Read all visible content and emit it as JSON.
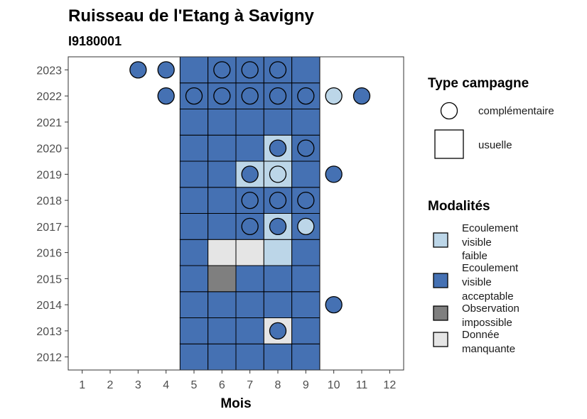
{
  "chart_data": {
    "type": "heatmap",
    "title": "Ruisseau de l'Etang à Savigny",
    "subtitle": "I9180001",
    "xlabel": "Mois",
    "ylabel": "",
    "x_ticks": [
      1,
      2,
      3,
      4,
      5,
      6,
      7,
      8,
      9,
      10,
      11,
      12
    ],
    "y_ticks": [
      2012,
      2013,
      2014,
      2015,
      2016,
      2017,
      2018,
      2019,
      2020,
      2021,
      2022,
      2023
    ],
    "xlim": [
      0.5,
      12.5
    ],
    "ylim": [
      2011.5,
      2023.5
    ],
    "grid": false,
    "modalites": [
      {
        "key": "faible",
        "label": "Ecoulement visible faible",
        "label_lines": [
          "Ecoulement",
          "visible",
          "faible"
        ],
        "color": "#bcd6e8"
      },
      {
        "key": "acceptable",
        "label": "Ecoulement visible acceptable",
        "label_lines": [
          "Ecoulement",
          "visible",
          "acceptable"
        ],
        "color": "#4571b3"
      },
      {
        "key": "impossible",
        "label": "Observation impossible",
        "label_lines": [
          "Observation",
          "impossible"
        ],
        "color": "#7f7f7f"
      },
      {
        "key": "manquante",
        "label": "Donnée manquante",
        "label_lines": [
          "Donnée",
          "manquante"
        ],
        "color": "#e5e5e5"
      }
    ],
    "type_campagne": [
      {
        "key": "complementaire",
        "label": "complémentaire",
        "shape": "circle"
      },
      {
        "key": "usuelle",
        "label": "usuelle",
        "shape": "square"
      }
    ],
    "usuelle": [
      {
        "year": 2012,
        "month": 5,
        "m": "acceptable"
      },
      {
        "year": 2012,
        "month": 6,
        "m": "acceptable"
      },
      {
        "year": 2012,
        "month": 7,
        "m": "acceptable"
      },
      {
        "year": 2012,
        "month": 8,
        "m": "acceptable"
      },
      {
        "year": 2012,
        "month": 9,
        "m": "acceptable"
      },
      {
        "year": 2013,
        "month": 5,
        "m": "acceptable"
      },
      {
        "year": 2013,
        "month": 6,
        "m": "acceptable"
      },
      {
        "year": 2013,
        "month": 7,
        "m": "acceptable"
      },
      {
        "year": 2013,
        "month": 8,
        "m": "manquante"
      },
      {
        "year": 2013,
        "month": 9,
        "m": "acceptable"
      },
      {
        "year": 2014,
        "month": 5,
        "m": "acceptable"
      },
      {
        "year": 2014,
        "month": 6,
        "m": "acceptable"
      },
      {
        "year": 2014,
        "month": 7,
        "m": "acceptable"
      },
      {
        "year": 2014,
        "month": 8,
        "m": "acceptable"
      },
      {
        "year": 2014,
        "month": 9,
        "m": "acceptable"
      },
      {
        "year": 2015,
        "month": 5,
        "m": "acceptable"
      },
      {
        "year": 2015,
        "month": 6,
        "m": "impossible"
      },
      {
        "year": 2015,
        "month": 7,
        "m": "acceptable"
      },
      {
        "year": 2015,
        "month": 8,
        "m": "acceptable"
      },
      {
        "year": 2015,
        "month": 9,
        "m": "acceptable"
      },
      {
        "year": 2016,
        "month": 5,
        "m": "acceptable"
      },
      {
        "year": 2016,
        "month": 6,
        "m": "manquante"
      },
      {
        "year": 2016,
        "month": 7,
        "m": "manquante"
      },
      {
        "year": 2016,
        "month": 8,
        "m": "faible"
      },
      {
        "year": 2016,
        "month": 9,
        "m": "acceptable"
      },
      {
        "year": 2017,
        "month": 5,
        "m": "acceptable"
      },
      {
        "year": 2017,
        "month": 6,
        "m": "acceptable"
      },
      {
        "year": 2017,
        "month": 7,
        "m": "acceptable"
      },
      {
        "year": 2017,
        "month": 8,
        "m": "faible"
      },
      {
        "year": 2017,
        "month": 9,
        "m": "acceptable"
      },
      {
        "year": 2018,
        "month": 5,
        "m": "acceptable"
      },
      {
        "year": 2018,
        "month": 6,
        "m": "acceptable"
      },
      {
        "year": 2018,
        "month": 7,
        "m": "acceptable"
      },
      {
        "year": 2018,
        "month": 8,
        "m": "acceptable"
      },
      {
        "year": 2018,
        "month": 9,
        "m": "acceptable"
      },
      {
        "year": 2019,
        "month": 5,
        "m": "acceptable"
      },
      {
        "year": 2019,
        "month": 6,
        "m": "acceptable"
      },
      {
        "year": 2019,
        "month": 7,
        "m": "faible"
      },
      {
        "year": 2019,
        "month": 8,
        "m": "faible"
      },
      {
        "year": 2019,
        "month": 9,
        "m": "acceptable"
      },
      {
        "year": 2020,
        "month": 5,
        "m": "acceptable"
      },
      {
        "year": 2020,
        "month": 6,
        "m": "acceptable"
      },
      {
        "year": 2020,
        "month": 7,
        "m": "acceptable"
      },
      {
        "year": 2020,
        "month": 8,
        "m": "faible"
      },
      {
        "year": 2020,
        "month": 9,
        "m": "acceptable"
      },
      {
        "year": 2021,
        "month": 5,
        "m": "acceptable"
      },
      {
        "year": 2021,
        "month": 6,
        "m": "acceptable"
      },
      {
        "year": 2021,
        "month": 7,
        "m": "acceptable"
      },
      {
        "year": 2021,
        "month": 8,
        "m": "acceptable"
      },
      {
        "year": 2021,
        "month": 9,
        "m": "acceptable"
      },
      {
        "year": 2022,
        "month": 5,
        "m": "acceptable"
      },
      {
        "year": 2022,
        "month": 6,
        "m": "acceptable"
      },
      {
        "year": 2022,
        "month": 7,
        "m": "acceptable"
      },
      {
        "year": 2022,
        "month": 8,
        "m": "acceptable"
      },
      {
        "year": 2022,
        "month": 9,
        "m": "acceptable"
      },
      {
        "year": 2023,
        "month": 5,
        "m": "acceptable"
      },
      {
        "year": 2023,
        "month": 6,
        "m": "acceptable"
      },
      {
        "year": 2023,
        "month": 7,
        "m": "acceptable"
      },
      {
        "year": 2023,
        "month": 8,
        "m": "acceptable"
      },
      {
        "year": 2023,
        "month": 9,
        "m": "acceptable"
      }
    ],
    "complementaire": [
      {
        "year": 2023,
        "month": 3,
        "m": "acceptable"
      },
      {
        "year": 2023,
        "month": 4,
        "m": "acceptable"
      },
      {
        "year": 2023,
        "month": 6,
        "m": "acceptable"
      },
      {
        "year": 2023,
        "month": 7,
        "m": "acceptable"
      },
      {
        "year": 2023,
        "month": 8,
        "m": "acceptable"
      },
      {
        "year": 2022,
        "month": 4,
        "m": "acceptable"
      },
      {
        "year": 2022,
        "month": 5,
        "m": "acceptable"
      },
      {
        "year": 2022,
        "month": 6,
        "m": "acceptable"
      },
      {
        "year": 2022,
        "month": 7,
        "m": "acceptable"
      },
      {
        "year": 2022,
        "month": 8,
        "m": "acceptable"
      },
      {
        "year": 2022,
        "month": 9,
        "m": "acceptable"
      },
      {
        "year": 2022,
        "month": 10,
        "m": "faible"
      },
      {
        "year": 2022,
        "month": 11,
        "m": "acceptable"
      },
      {
        "year": 2020,
        "month": 8,
        "m": "acceptable"
      },
      {
        "year": 2020,
        "month": 9,
        "m": "acceptable"
      },
      {
        "year": 2019,
        "month": 7,
        "m": "acceptable"
      },
      {
        "year": 2019,
        "month": 8,
        "m": "faible"
      },
      {
        "year": 2019,
        "month": 10,
        "m": "acceptable"
      },
      {
        "year": 2018,
        "month": 7,
        "m": "acceptable"
      },
      {
        "year": 2018,
        "month": 8,
        "m": "acceptable"
      },
      {
        "year": 2018,
        "month": 9,
        "m": "acceptable"
      },
      {
        "year": 2017,
        "month": 7,
        "m": "acceptable"
      },
      {
        "year": 2017,
        "month": 8,
        "m": "acceptable"
      },
      {
        "year": 2017,
        "month": 9,
        "m": "faible"
      },
      {
        "year": 2014,
        "month": 10,
        "m": "acceptable"
      },
      {
        "year": 2013,
        "month": 8,
        "m": "acceptable"
      }
    ],
    "legend": {
      "type_campagne_title": "Type campagne",
      "modalites_title": "Modalités",
      "placement": "right"
    }
  }
}
